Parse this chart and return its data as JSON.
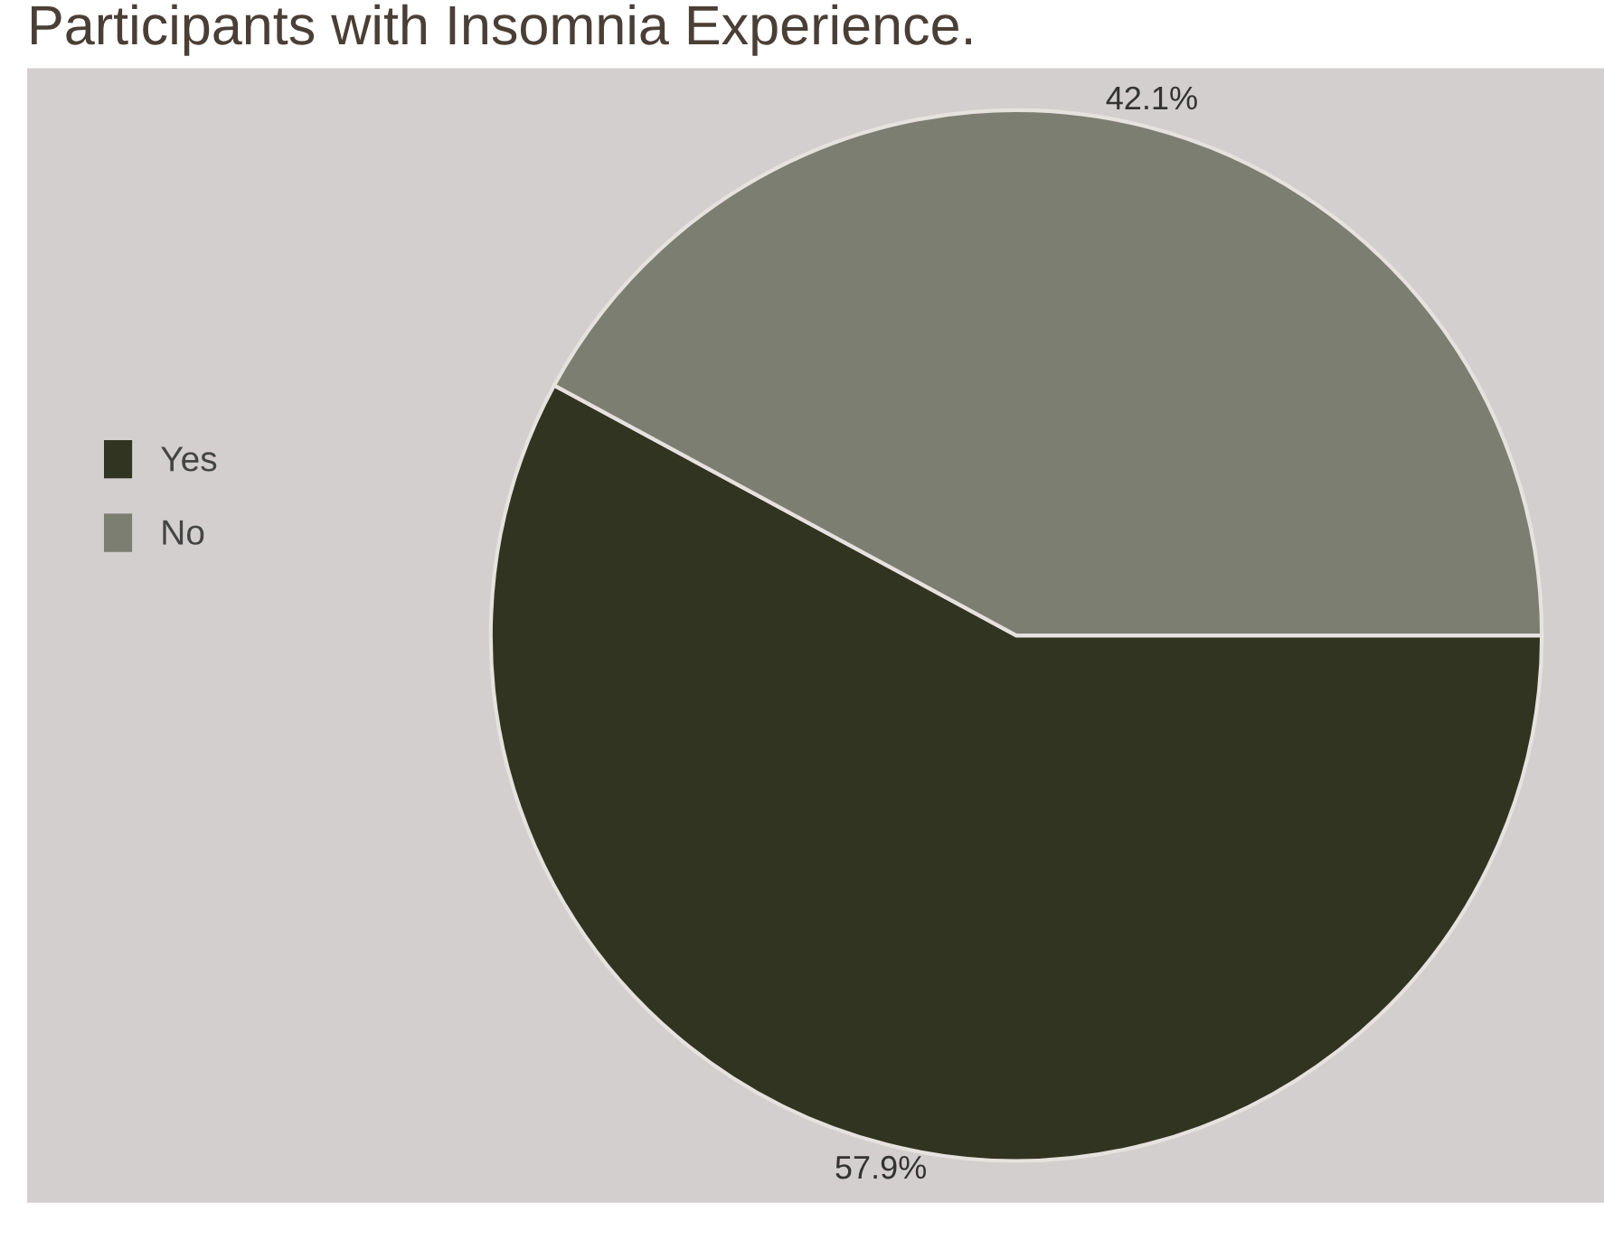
{
  "chart_data": {
    "type": "pie",
    "title": "Participants with Insomnia Experience.",
    "categories": [
      "Yes",
      "No"
    ],
    "values": [
      57.9,
      42.1
    ],
    "colors": [
      "#323422",
      "#7d7e72"
    ],
    "value_labels": [
      "57.9%",
      "42.1%"
    ],
    "legend": "left"
  }
}
